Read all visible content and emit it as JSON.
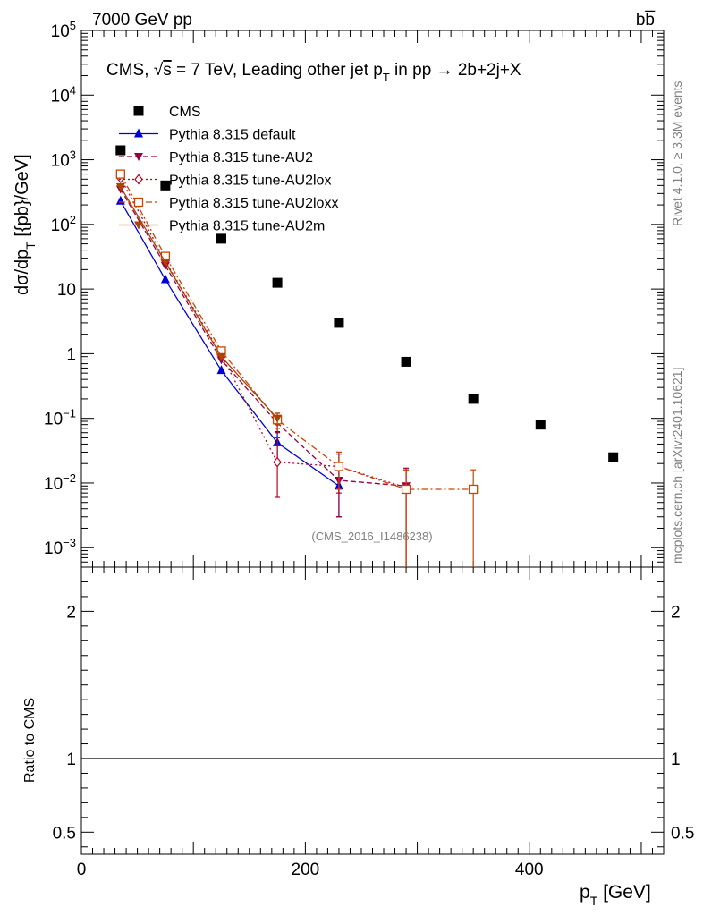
{
  "header": {
    "energy_label": "7000 GeV pp",
    "process_label": "bb̅"
  },
  "side": {
    "rivet_label": "Rivet 4.1.0, ≥ 3.3M events",
    "mcplots_label": "mcplots.cern.ch [arXiv:2401.10621]"
  },
  "chart_data": {
    "type": "scatter",
    "title": "CMS, √s = 7 TeV, Leading other jet p_T in pp → 2b+2j+X",
    "title_parts": {
      "prefix": "CMS, ",
      "sqrt": "√",
      "s": "s",
      "mid": " = 7 TeV, Leading other jet p",
      "sub": "T",
      "suffix": " in pp →  2b+2j+X"
    },
    "watermark": "(CMS_2016_I1486238)",
    "xlabel": "p_T [GeV]",
    "xlabel_parts": {
      "main": "p",
      "sub": "T",
      "unit": " [GeV]"
    },
    "ylabel": "dσ/dp_T [{pb}/GeV]",
    "ylabel_parts": {
      "pre": "dσ/dp",
      "sub": "T",
      "post": "  [{pb}/GeV]"
    },
    "ratio_ylabel": "Ratio to CMS",
    "xlim": [
      0,
      520
    ],
    "ylim": [
      0.0005,
      100000
    ],
    "yscale": "log",
    "ratio_ylim": [
      0.35,
      2.3
    ],
    "xticks": [
      {
        "v": 0,
        "label": "0"
      },
      {
        "v": 200,
        "label": "200"
      },
      {
        "v": 400,
        "label": "400"
      }
    ],
    "yticks": [
      {
        "v": 0.001,
        "base": "10",
        "exp": "−3"
      },
      {
        "v": 0.01,
        "base": "10",
        "exp": "−2"
      },
      {
        "v": 0.1,
        "base": "10",
        "exp": "−1"
      },
      {
        "v": 1,
        "base": "1",
        "exp": ""
      },
      {
        "v": 10,
        "base": "10",
        "exp": ""
      },
      {
        "v": 100,
        "base": "10",
        "exp": "2"
      },
      {
        "v": 1000,
        "base": "10",
        "exp": "3"
      },
      {
        "v": 10000,
        "base": "10",
        "exp": "4"
      },
      {
        "v": 100000,
        "base": "10",
        "exp": "5"
      }
    ],
    "ratio_yticks": [
      {
        "v": 0.5,
        "label": "0.5"
      },
      {
        "v": 1,
        "label": "1"
      },
      {
        "v": 2,
        "label": "2"
      }
    ],
    "series": [
      {
        "name": "CMS",
        "color": "#000000",
        "marker": "filled-square",
        "line": "none",
        "x": [
          35,
          75,
          125,
          175,
          230,
          290,
          350,
          410,
          475
        ],
        "y": [
          1400,
          400,
          60,
          12.5,
          3.0,
          0.75,
          0.2,
          0.08,
          0.025
        ],
        "err": [
          null,
          null,
          null,
          null,
          null,
          null,
          null,
          null,
          null
        ]
      },
      {
        "name": "Pythia 8.315 default",
        "color": "#0000dd",
        "marker": "filled-triangle-up",
        "line": "solid",
        "x": [
          35,
          75,
          125,
          175,
          230
        ],
        "y": [
          230,
          14,
          0.55,
          0.042,
          0.009
        ],
        "err": [
          null,
          null,
          null,
          [
            0.02,
            0.062
          ],
          [
            0.003,
            0.028
          ]
        ]
      },
      {
        "name": "Pythia 8.315 tune-AU2",
        "color": "#990044",
        "marker": "filled-triangle-down",
        "line": "dashed",
        "x": [
          35,
          75,
          125,
          175,
          230,
          290
        ],
        "y": [
          350,
          23,
          0.8,
          0.085,
          0.011,
          0.009
        ],
        "err": [
          null,
          null,
          null,
          [
            0.06,
            0.11
          ],
          [
            0.003,
            0.02
          ],
          [
            0.0005,
            0.017
          ]
        ]
      },
      {
        "name": "Pythia 8.315 tune-AU2lox",
        "color": "#bb0022",
        "marker": "open-diamond",
        "line": "dotted",
        "x": [
          35,
          75,
          125,
          175,
          230,
          290
        ],
        "y": [
          520,
          27,
          0.95,
          0.021,
          0.018,
          0.0085
        ],
        "err": [
          null,
          null,
          null,
          [
            0.006,
            0.05
          ],
          [
            0.007,
            0.03
          ],
          [
            0.0005,
            0.016
          ]
        ]
      },
      {
        "name": "Pythia 8.315 tune-AU2loxx",
        "color": "#cc4400",
        "marker": "open-square",
        "line": "dashdot",
        "x": [
          35,
          75,
          125,
          175,
          230,
          290,
          350
        ],
        "y": [
          600,
          32,
          1.1,
          0.095,
          0.018,
          0.008,
          0.008
        ],
        "err": [
          null,
          null,
          null,
          [
            0.07,
            0.12
          ],
          [
            0.008,
            0.03
          ],
          [
            0.0005,
            0.016
          ],
          [
            0.0005,
            0.016
          ]
        ]
      },
      {
        "name": "Pythia 8.315 tune-AU2m",
        "color": "#aa4400",
        "marker": "filled-triangle-down",
        "line": "solid",
        "x": [
          35,
          75,
          125,
          175
        ],
        "y": [
          380,
          26,
          0.9,
          0.1
        ],
        "err": [
          null,
          null,
          null,
          [
            0.08,
            0.12
          ]
        ]
      }
    ]
  }
}
